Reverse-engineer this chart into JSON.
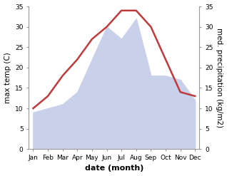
{
  "months": [
    "Jan",
    "Feb",
    "Mar",
    "Apr",
    "May",
    "Jun",
    "Jul",
    "Aug",
    "Sep",
    "Oct",
    "Nov",
    "Dec"
  ],
  "temperature": [
    10,
    13,
    18,
    22,
    27,
    30,
    34,
    34,
    30,
    22,
    14,
    13
  ],
  "precipitation": [
    9,
    10,
    11,
    14,
    22,
    30,
    27,
    32,
    18,
    18,
    17,
    12
  ],
  "temp_color": "#c0393b",
  "precip_fill_color": "#c8d0ea",
  "ylim": [
    0,
    35
  ],
  "yticks": [
    0,
    5,
    10,
    15,
    20,
    25,
    30,
    35
  ],
  "ylabel_left": "max temp (C)",
  "ylabel_right": "med. precipitation (kg/m2)",
  "xlabel": "date (month)",
  "temp_linewidth": 1.8,
  "background_color": "#ffffff",
  "tick_fontsize": 6.5,
  "label_fontsize": 7.5,
  "xlabel_fontsize": 8
}
